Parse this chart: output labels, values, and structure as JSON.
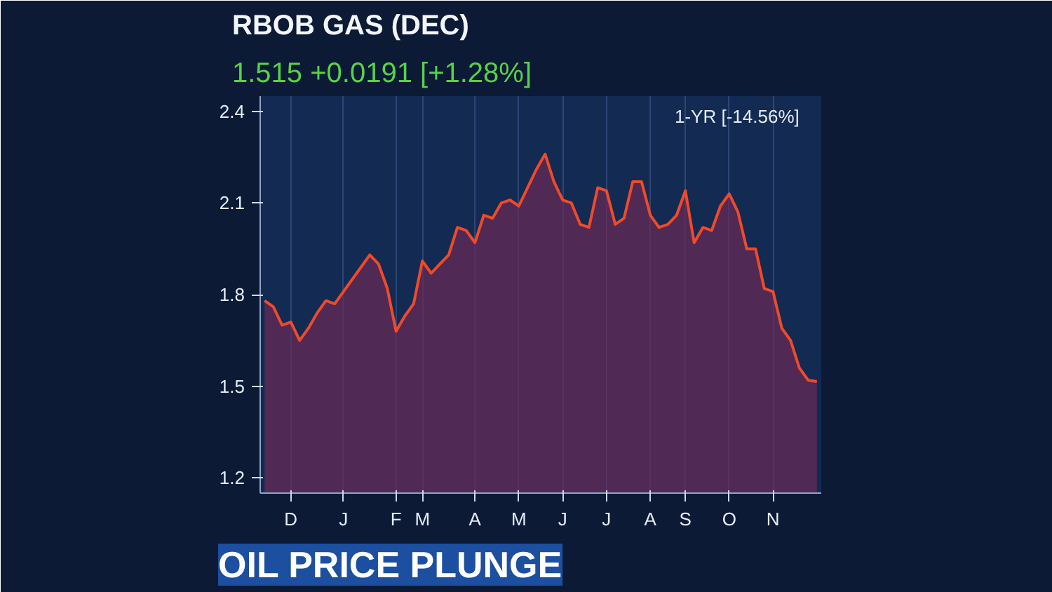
{
  "chart_data": {
    "type": "area",
    "title": "RBOB GAS (DEC)",
    "subtitle": "1.515 +0.0191 [+1.28%]",
    "annotations": [
      "1-YR [-14.56%]",
      "OIL PRICE PLUNGE"
    ],
    "categories": [
      null,
      null,
      null,
      "D",
      null,
      null,
      null,
      null,
      null,
      "J",
      null,
      null,
      null,
      null,
      null,
      "F",
      null,
      null,
      "M",
      null,
      null,
      null,
      null,
      null,
      "A",
      null,
      null,
      null,
      null,
      "M",
      null,
      null,
      null,
      null,
      "J",
      null,
      null,
      null,
      null,
      "J",
      null,
      null,
      null,
      null,
      "A",
      null,
      null,
      null,
      "S",
      null,
      null,
      null,
      null,
      "O",
      null,
      null,
      null,
      null,
      "N",
      null,
      null,
      null,
      null,
      null
    ],
    "series": [
      {
        "color": "#f04a2a",
        "values": [
          1.78,
          1.76,
          1.7,
          1.71,
          1.65,
          1.69,
          1.74,
          1.78,
          1.77,
          1.81,
          1.85,
          1.89,
          1.93,
          1.9,
          1.82,
          1.68,
          1.73,
          1.77,
          1.91,
          1.87,
          1.9,
          1.93,
          2.02,
          2.01,
          1.97,
          2.06,
          2.05,
          2.1,
          2.11,
          2.09,
          2.15,
          2.21,
          2.26,
          2.17,
          2.11,
          2.1,
          2.03,
          2.02,
          2.15,
          2.14,
          2.03,
          2.05,
          2.17,
          2.17,
          2.06,
          2.02,
          2.03,
          2.06,
          2.14,
          1.97,
          2.02,
          2.01,
          2.09,
          2.13,
          2.07,
          1.95,
          1.95,
          1.82,
          1.81,
          1.69,
          1.65,
          1.56,
          1.52,
          1.515
        ]
      }
    ],
    "ylim": [
      1.15,
      2.45
    ],
    "yticks": [
      1.2,
      1.5,
      1.8,
      2.1,
      2.4
    ],
    "grid": "x"
  }
}
